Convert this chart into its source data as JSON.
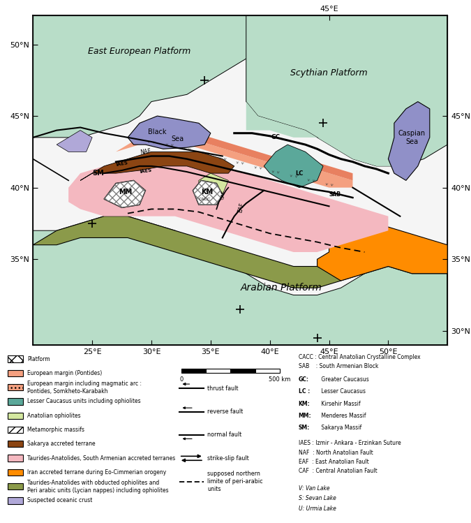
{
  "map_xlim": [
    20,
    55
  ],
  "map_ylim": [
    29,
    52
  ],
  "figsize": [
    6.75,
    7.49
  ],
  "dpi": 100,
  "platform_color": "#b8ddc8",
  "european_margin_color": "#f4a080",
  "lesser_caucasus_color": "#5ba89a",
  "anatolian_ophiolites_color": "#d4e8a0",
  "sakarya_color": "#8b4513",
  "taurides_color": "#f4b8c0",
  "iran_accreted_color": "#ff8c00",
  "taurides_ophiolites_color": "#8b9a4a",
  "oceanic_crust_color": "#b0a8d8",
  "black_sea_color": "#9090c8",
  "caspian_sea_color": "#9090c8",
  "lat_labels": [
    "35°N",
    "40°N",
    "45°N",
    "50°N"
  ],
  "lat_values": [
    35,
    40,
    45,
    50
  ],
  "lon_labels": [
    "25°E",
    "30°E",
    "35°E",
    "40°E",
    "45°E",
    "50°E"
  ],
  "lon_values": [
    25,
    30,
    35,
    40,
    45,
    50
  ],
  "side_lat_labels": [
    "30°N",
    "35°N",
    "40°N",
    "45°N"
  ],
  "side_lat_values": [
    30,
    35,
    40,
    45
  ],
  "top_lon_labels": [
    "45°E"
  ],
  "top_lon_values": [
    45
  ]
}
